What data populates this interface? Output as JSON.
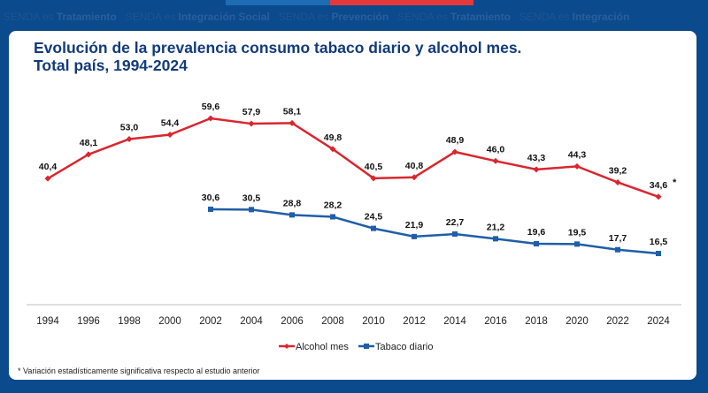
{
  "banner": {
    "watermark": [
      "SENDA es",
      "Tratamiento",
      "SENDA es",
      "Integración Social",
      "SENDA es",
      "Prevención",
      "SENDA es",
      "Tratamiento",
      "SENDA es",
      "Integración"
    ],
    "colors": {
      "background": "#0b4a8c",
      "stripe_blue": "#1e6cb3",
      "stripe_red": "#e5383b"
    }
  },
  "chart_data": {
    "type": "line",
    "title": "Evolución de la prevalencia consumo tabaco diario y alcohol mes.",
    "subtitle": "Total país, 1994-2024",
    "xlabel": "",
    "ylabel": "",
    "categories": [
      "1994",
      "1996",
      "1998",
      "2000",
      "2002",
      "2004",
      "2006",
      "2008",
      "2010",
      "2012",
      "2014",
      "2016",
      "2018",
      "2020",
      "2022",
      "2024"
    ],
    "series": [
      {
        "name": "Alcohol mes",
        "color": "#d9262e",
        "marker": "diamond",
        "values": [
          40.4,
          48.1,
          53.0,
          54.4,
          59.6,
          57.9,
          58.1,
          49.8,
          40.5,
          40.8,
          48.9,
          46.0,
          43.3,
          44.3,
          39.2,
          34.6
        ],
        "labels": [
          "40,4",
          "48,1",
          "53,0",
          "54,4",
          "59,6",
          "57,9",
          "58,1",
          "49,8",
          "40,5",
          "40,8",
          "48,9",
          "46,0",
          "43,3",
          "44,3",
          "39,2",
          "34,6"
        ]
      },
      {
        "name": "Tabaco diario",
        "color": "#1f5ea8",
        "marker": "square",
        "values": [
          null,
          null,
          null,
          null,
          30.6,
          30.5,
          28.8,
          28.2,
          24.5,
          21.9,
          22.7,
          21.2,
          19.6,
          19.5,
          17.7,
          16.5
        ],
        "labels": [
          null,
          null,
          null,
          null,
          "30,6",
          "30,5",
          "28,8",
          "28,2",
          "24,5",
          "21,9",
          "22,7",
          "21,2",
          "19,6",
          "19,5",
          "17,7",
          "16,5"
        ]
      }
    ],
    "annotation": "*",
    "ylim": [
      0,
      60
    ],
    "grid": false,
    "legend_position": "bottom"
  },
  "footnote": "* Variación estadísticamente significativa respecto al estudio anterior"
}
